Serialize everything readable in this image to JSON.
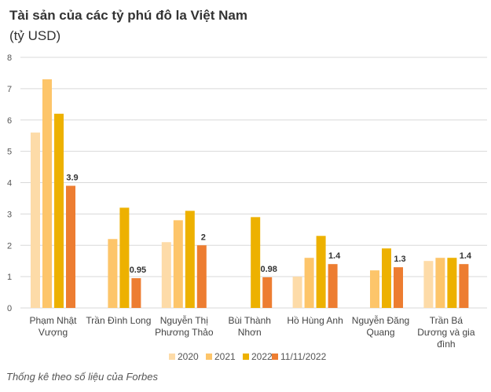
{
  "chart_data": {
    "type": "bar",
    "title": "Tài sản của các tỷ phú đô la Việt Nam",
    "subtitle": "(tỷ USD)",
    "ylim": [
      0,
      8
    ],
    "yticks": [
      0,
      1,
      2,
      3,
      4,
      5,
      6,
      7,
      8
    ],
    "grid": true,
    "legend_position": "bottom",
    "categories": [
      [
        "Phạm Nhật",
        "Vượng"
      ],
      [
        "Trần Đình Long"
      ],
      [
        "Nguyễn Thị",
        "Phương Thảo"
      ],
      [
        "Bùi Thành",
        "Nhơn"
      ],
      [
        "Hồ Hùng Anh"
      ],
      [
        "Nguyễn Đăng",
        "Quang"
      ],
      [
        "Trần Bá",
        "Dương và gia",
        "đình"
      ]
    ],
    "series": [
      {
        "name": "2020",
        "color": "#fddba8",
        "values": [
          5.6,
          null,
          2.1,
          null,
          1.0,
          null,
          1.5
        ]
      },
      {
        "name": "2021",
        "color": "#fdc56a",
        "values": [
          7.3,
          2.2,
          2.8,
          null,
          1.6,
          1.2,
          1.6
        ]
      },
      {
        "name": "2022",
        "color": "#edb100",
        "values": [
          6.2,
          3.2,
          3.1,
          2.9,
          2.3,
          1.9,
          1.6
        ]
      },
      {
        "name": "11/11/2022",
        "color": "#ed7d31",
        "values": [
          3.9,
          0.95,
          2,
          0.98,
          1.4,
          1.3,
          1.4
        ],
        "labels": [
          "3.9",
          "0.95",
          "2",
          "0.98",
          "1.4",
          "1.3",
          "1.4"
        ]
      }
    ]
  },
  "source": "Thống kê theo số liệu của Forbes"
}
